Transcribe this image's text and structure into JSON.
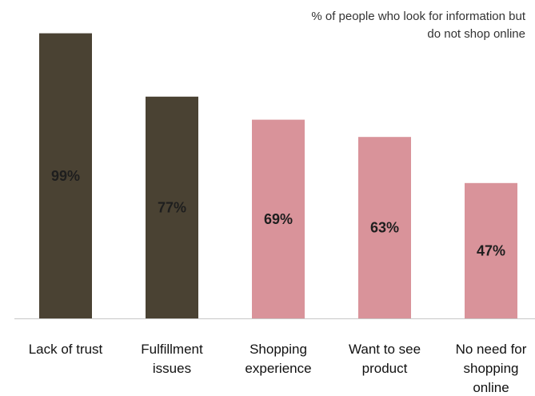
{
  "chart_data": {
    "type": "bar",
    "annotation": [
      "% of people who look for information  but",
      "do not shop online"
    ],
    "categories": [
      [
        "Lack of trust"
      ],
      [
        "Fulfillment",
        "issues"
      ],
      [
        "Shopping",
        "experience"
      ],
      [
        "Want to see",
        "product"
      ],
      [
        "No need for",
        "shopping",
        "online"
      ]
    ],
    "values": [
      99,
      77,
      69,
      63,
      47
    ],
    "value_labels": [
      "99%",
      "77%",
      "69%",
      "63%",
      "47%"
    ],
    "colors": [
      "#4a4233",
      "#4a4233",
      "#d9939a",
      "#d9939a",
      "#d9939a"
    ],
    "label_color": "#1e1e1e",
    "axis_color": "#c8c8c8",
    "ylim": [
      0,
      100
    ],
    "grid": false,
    "legend": "none"
  }
}
